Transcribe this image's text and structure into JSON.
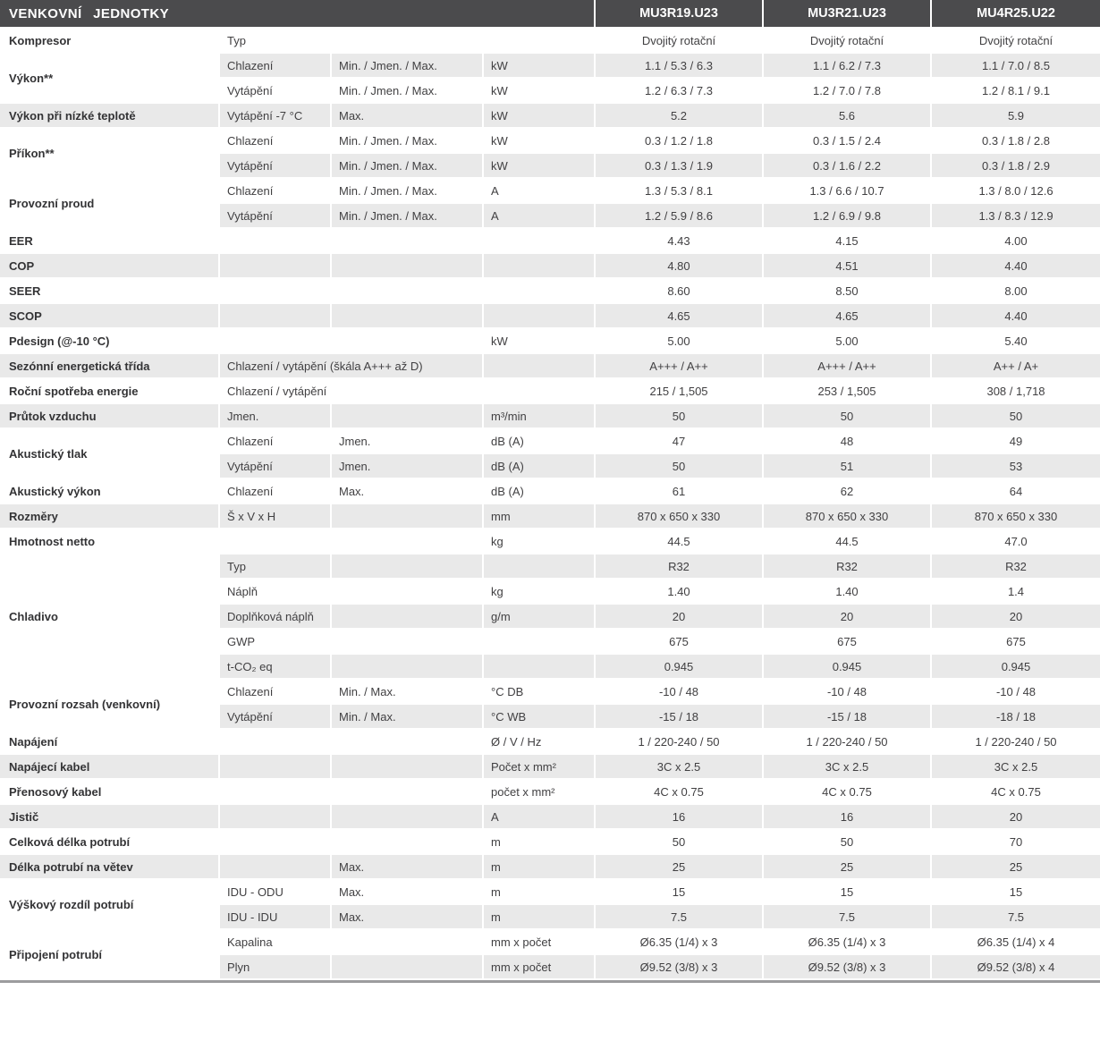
{
  "header": {
    "title": "VENKOVNÍ JEDNOTKY",
    "models": [
      "MU3R19.U23",
      "MU3R21.U23",
      "MU4R25.U22"
    ]
  },
  "colors": {
    "header_bg": "#4b4b4d",
    "header_text": "#ffffff",
    "row_shade": "#e9e9e9",
    "body_text": "#414042"
  },
  "rows": [
    {
      "group": "Kompresor",
      "span": 1,
      "sub": "Typ",
      "range": "",
      "unit": "",
      "values": [
        "Dvojitý rotační",
        "Dvojitý rotační",
        "Dvojitý rotační"
      ]
    },
    {
      "group": "Výkon**",
      "span": 2,
      "sub": "Chlazení",
      "range": "Min. / Jmen. / Max.",
      "unit": "kW",
      "values": [
        "1.1 / 5.3 / 6.3",
        "1.1 / 6.2 / 7.3",
        "1.1 / 7.0 / 8.5"
      ]
    },
    {
      "sub": "Vytápění",
      "range": "Min. / Jmen. / Max.",
      "unit": "kW",
      "values": [
        "1.2 / 6.3 / 7.3",
        "1.2 / 7.0 / 7.8",
        "1.2 / 8.1 / 9.1"
      ]
    },
    {
      "group": "Výkon při nízké teplotě",
      "span": 1,
      "sub": "Vytápění -7 °C",
      "range": "Max.",
      "unit": "kW",
      "values": [
        "5.2",
        "5.6",
        "5.9"
      ]
    },
    {
      "group": "Příkon**",
      "span": 2,
      "sub": "Chlazení",
      "range": "Min. / Jmen. / Max.",
      "unit": "kW",
      "values": [
        "0.3 / 1.2 / 1.8",
        "0.3 / 1.5 / 2.4",
        "0.3 / 1.8 / 2.8"
      ]
    },
    {
      "sub": "Vytápění",
      "range": "Min. / Jmen. / Max.",
      "unit": "kW",
      "values": [
        "0.3 / 1.3 / 1.9",
        "0.3 / 1.6 / 2.2",
        "0.3 / 1.8 / 2.9"
      ]
    },
    {
      "group": "Provozní proud",
      "span": 2,
      "sub": "Chlazení",
      "range": "Min. / Jmen. / Max.",
      "unit": "A",
      "values": [
        "1.3 / 5.3 / 8.1",
        "1.3 / 6.6 / 10.7",
        "1.3 / 8.0 / 12.6"
      ]
    },
    {
      "sub": "Vytápění",
      "range": "Min. / Jmen. / Max.",
      "unit": "A",
      "values": [
        "1.2 / 5.9 / 8.6",
        "1.2 / 6.9 / 9.8",
        "1.3 / 8.3 / 12.9"
      ]
    },
    {
      "group": "EER",
      "span": 1,
      "sub": "",
      "range": "",
      "unit": "",
      "values": [
        "4.43",
        "4.15",
        "4.00"
      ]
    },
    {
      "group": "COP",
      "span": 1,
      "sub": "",
      "range": "",
      "unit": "",
      "values": [
        "4.80",
        "4.51",
        "4.40"
      ]
    },
    {
      "group": "SEER",
      "span": 1,
      "sub": "",
      "range": "",
      "unit": "",
      "values": [
        "8.60",
        "8.50",
        "8.00"
      ]
    },
    {
      "group": "SCOP",
      "span": 1,
      "sub": "",
      "range": "",
      "unit": "",
      "values": [
        "4.65",
        "4.65",
        "4.40"
      ]
    },
    {
      "group": "Pdesign (@-10 °C)",
      "span": 1,
      "sub": "",
      "range": "",
      "unit": "kW",
      "values": [
        "5.00",
        "5.00",
        "5.40"
      ]
    },
    {
      "group": "Sezónní energetická třída",
      "span": 1,
      "sub": "Chlazení / vytápění (škála A+++ až D)",
      "subspan": 2,
      "unit": "",
      "values": [
        "A+++ / A++",
        "A+++ / A++",
        "A++ / A+"
      ]
    },
    {
      "group": "Roční spotřeba energie",
      "span": 1,
      "sub": "Chlazení / vytápění",
      "range": "",
      "unit": "",
      "values": [
        "215 / 1,505",
        "253 / 1,505",
        "308 / 1,718"
      ]
    },
    {
      "group": "Průtok vzduchu",
      "span": 1,
      "sub": "Jmen.",
      "range": "",
      "unit": "m³/min",
      "values": [
        "50",
        "50",
        "50"
      ]
    },
    {
      "group": "Akustický tlak",
      "span": 2,
      "sub": "Chlazení",
      "range": "Jmen.",
      "unit": "dB (A)",
      "values": [
        "47",
        "48",
        "49"
      ]
    },
    {
      "sub": "Vytápění",
      "range": "Jmen.",
      "unit": "dB (A)",
      "values": [
        "50",
        "51",
        "53"
      ]
    },
    {
      "group": "Akustický výkon",
      "span": 1,
      "sub": "Chlazení",
      "range": "Max.",
      "unit": "dB (A)",
      "values": [
        "61",
        "62",
        "64"
      ]
    },
    {
      "group": "Rozměry",
      "span": 1,
      "sub": "Š x V x H",
      "range": "",
      "unit": "mm",
      "values": [
        "870 x 650 x 330",
        "870 x 650 x 330",
        "870 x 650 x 330"
      ]
    },
    {
      "group": "Hmotnost netto",
      "span": 1,
      "sub": "",
      "range": "",
      "unit": "kg",
      "values": [
        "44.5",
        "44.5",
        "47.0"
      ]
    },
    {
      "group": "Chladivo",
      "span": 5,
      "sub": "Typ",
      "range": "",
      "unit": "",
      "values": [
        "R32",
        "R32",
        "R32"
      ]
    },
    {
      "sub": "Náplň",
      "range": "",
      "unit": "kg",
      "values": [
        "1.40",
        "1.40",
        "1.4"
      ]
    },
    {
      "sub": "Doplňková náplň",
      "range": "",
      "unit": "g/m",
      "values": [
        "20",
        "20",
        "20"
      ]
    },
    {
      "sub": "GWP",
      "range": "",
      "unit": "",
      "values": [
        "675",
        "675",
        "675"
      ]
    },
    {
      "sub": "t-CO₂ eq",
      "range": "",
      "unit": "",
      "values": [
        "0.945",
        "0.945",
        "0.945"
      ]
    },
    {
      "group": "Provozní rozsah (venkovní)",
      "span": 2,
      "sub": "Chlazení",
      "range": "Min. / Max.",
      "unit": "°C DB",
      "values": [
        "-10 / 48",
        "-10 / 48",
        "-10 / 48"
      ]
    },
    {
      "sub": "Vytápění",
      "range": "Min. / Max.",
      "unit": "°C WB",
      "values": [
        "-15 / 18",
        "-15 / 18",
        "-18 / 18"
      ]
    },
    {
      "group": "Napájení",
      "span": 1,
      "sub": "",
      "range": "",
      "unit": "Ø / V / Hz",
      "values": [
        "1 / 220-240 / 50",
        "1 / 220-240 / 50",
        "1 / 220-240 / 50"
      ]
    },
    {
      "group": "Napájecí kabel",
      "span": 1,
      "sub": "",
      "range": "",
      "unit": "Počet x mm²",
      "values": [
        "3C x 2.5",
        "3C x 2.5",
        "3C x 2.5"
      ]
    },
    {
      "group": "Přenosový kabel",
      "span": 1,
      "sub": "",
      "range": "",
      "unit": "počet x mm²",
      "values": [
        "4C x 0.75",
        "4C x 0.75",
        "4C x 0.75"
      ]
    },
    {
      "group": "Jistič",
      "span": 1,
      "sub": "",
      "range": "",
      "unit": "A",
      "values": [
        "16",
        "16",
        "20"
      ]
    },
    {
      "group": "Celková délka potrubí",
      "span": 1,
      "sub": "",
      "range": "",
      "unit": "m",
      "values": [
        "50",
        "50",
        "70"
      ]
    },
    {
      "group": "Délka potrubí na větev",
      "span": 1,
      "sub": "",
      "range": "Max.",
      "unit": "m",
      "values": [
        "25",
        "25",
        "25"
      ]
    },
    {
      "group": "Výškový rozdíl potrubí",
      "span": 2,
      "sub": "IDU - ODU",
      "range": "Max.",
      "unit": "m",
      "values": [
        "15",
        "15",
        "15"
      ]
    },
    {
      "sub": "IDU - IDU",
      "range": "Max.",
      "unit": "m",
      "values": [
        "7.5",
        "7.5",
        "7.5"
      ]
    },
    {
      "group": "Připojení potrubí",
      "span": 2,
      "sub": "Kapalina",
      "range": "",
      "unit": "mm x počet",
      "values": [
        "Ø6.35 (1/4) x 3",
        "Ø6.35 (1/4) x 3",
        "Ø6.35 (1/4) x 4"
      ]
    },
    {
      "sub": "Plyn",
      "range": "",
      "unit": "mm x počet",
      "values": [
        "Ø9.52 (3/8) x 3",
        "Ø9.52 (3/8) x 3",
        "Ø9.52 (3/8) x 4"
      ]
    }
  ]
}
